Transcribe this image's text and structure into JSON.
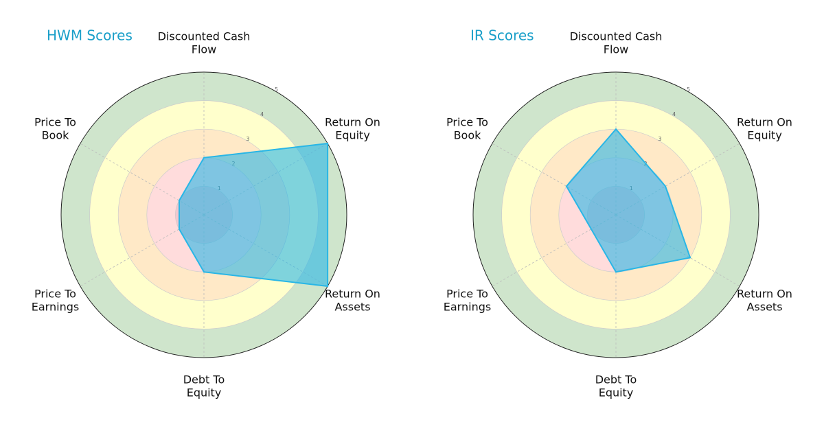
{
  "chart_data": [
    {
      "type": "radar",
      "title": "HWM Scores",
      "categories": [
        "Discounted Cash\nFlow",
        "Return On\nEquity",
        "Return On\nAssets",
        "Debt To\nEquity",
        "Price To\nEarnings",
        "Price To\nBook"
      ],
      "values": [
        2,
        5,
        5,
        2,
        1,
        1
      ],
      "color": "#29b6e6",
      "ylim": [
        0,
        5
      ],
      "yticks": [
        1,
        2,
        3,
        4,
        5
      ]
    },
    {
      "type": "radar",
      "title": "IR Scores",
      "categories": [
        "Discounted Cash\nFlow",
        "Return On\nEquity",
        "Return On\nAssets",
        "Debt To\nEquity",
        "Price To\nEarnings",
        "Price To\nBook"
      ],
      "values": [
        3,
        2,
        3,
        2,
        1,
        2
      ],
      "color": "#29b6e6",
      "ylim": [
        0,
        5
      ],
      "yticks": [
        1,
        2,
        3,
        4,
        5
      ]
    }
  ]
}
